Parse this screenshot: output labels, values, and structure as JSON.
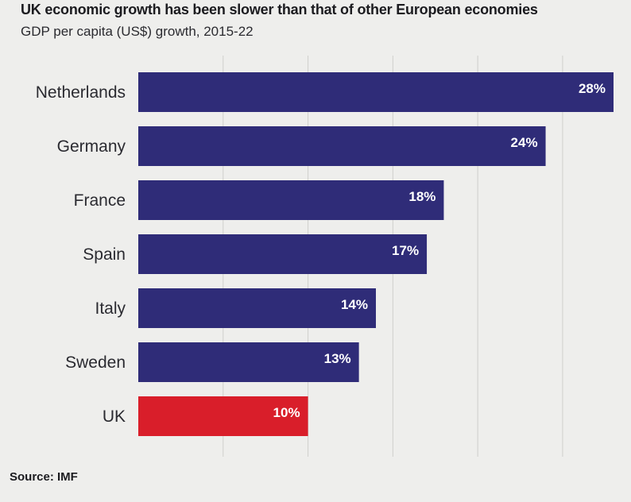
{
  "chart_data": {
    "type": "bar",
    "orientation": "horizontal",
    "title": "UK economic growth has been slower than that of other European economies",
    "subtitle": "GDP per capita (US$) growth, 2015-22",
    "categories": [
      "Netherlands",
      "Germany",
      "France",
      "Spain",
      "Italy",
      "Sweden",
      "UK"
    ],
    "values": [
      28,
      24,
      18,
      17,
      14,
      13,
      10
    ],
    "value_labels": [
      "28%",
      "24%",
      "18%",
      "17%",
      "14%",
      "13%",
      "10%"
    ],
    "xlim": [
      0,
      28
    ],
    "grid": true,
    "colors": {
      "default_bar": "#2f2c78",
      "highlight_bar": "#d91e2a",
      "grid": "#cfcfcc"
    },
    "highlight_category": "UK",
    "source": "Source: IMF"
  }
}
